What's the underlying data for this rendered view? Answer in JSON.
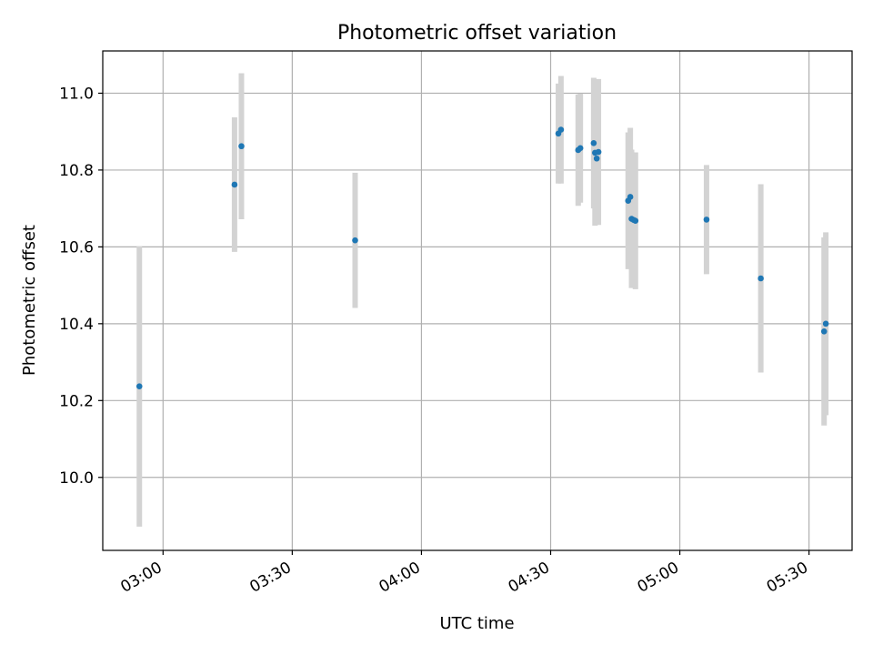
{
  "chart_data": {
    "type": "scatter",
    "title": "Photometric offset variation",
    "xlabel": "UTC time",
    "ylabel": "Photometric offset",
    "xlim": [
      "02:46",
      "05:40"
    ],
    "ylim": [
      9.81,
      11.11
    ],
    "xticks": [
      "03:00",
      "03:30",
      "04:00",
      "04:30",
      "05:00",
      "05:30"
    ],
    "yticks": [
      10.0,
      10.2,
      10.4,
      10.6,
      10.8,
      11.0
    ],
    "ytick_labels": [
      "10.0",
      "10.2",
      "10.4",
      "10.6",
      "10.8",
      "11.0"
    ],
    "grid": true,
    "point_color": "#1f77b4",
    "errorbar_color": "#d3d3d3",
    "points": [
      {
        "x": "02:54.5",
        "y": 10.237,
        "err": 0.365
      },
      {
        "x": "03:16.6",
        "y": 10.762,
        "err": 0.175
      },
      {
        "x": "03:18.2",
        "y": 10.862,
        "err": 0.19
      },
      {
        "x": "03:44.6",
        "y": 10.617,
        "err": 0.176
      },
      {
        "x": "04:31.8",
        "y": 10.895,
        "err": 0.13
      },
      {
        "x": "04:32.4",
        "y": 10.905,
        "err": 0.14
      },
      {
        "x": "04:36.4",
        "y": 10.852,
        "err": 0.145
      },
      {
        "x": "04:36.9",
        "y": 10.857,
        "err": 0.142
      },
      {
        "x": "04:40.0",
        "y": 10.87,
        "err": 0.17
      },
      {
        "x": "04:40.3",
        "y": 10.845,
        "err": 0.19
      },
      {
        "x": "04:40.7",
        "y": 10.83,
        "err": 0.16
      },
      {
        "x": "04:41.1",
        "y": 10.847,
        "err": 0.19
      },
      {
        "x": "04:48.0",
        "y": 10.72,
        "err": 0.178
      },
      {
        "x": "04:48.5",
        "y": 10.73,
        "err": 0.18
      },
      {
        "x": "04:48.8",
        "y": 10.673,
        "err": 0.18
      },
      {
        "x": "04:49.3",
        "y": 10.67,
        "err": 0.175
      },
      {
        "x": "04:49.7",
        "y": 10.668,
        "err": 0.178
      },
      {
        "x": "05:06.2",
        "y": 10.671,
        "err": 0.142
      },
      {
        "x": "05:18.8",
        "y": 10.518,
        "err": 0.245
      },
      {
        "x": "05:33.5",
        "y": 10.38,
        "err": 0.245
      },
      {
        "x": "05:33.9",
        "y": 10.4,
        "err": 0.238
      }
    ]
  }
}
